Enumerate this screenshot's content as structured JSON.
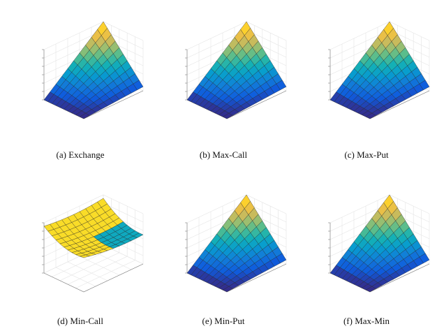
{
  "figure": {
    "panels": [
      {
        "id": "a",
        "caption": "(a)  Exchange",
        "surface": "rising"
      },
      {
        "id": "b",
        "caption": "(b)  Max-Call",
        "surface": "rising"
      },
      {
        "id": "c",
        "caption": "(c)  Max-Put",
        "surface": "rising"
      },
      {
        "id": "d",
        "caption": "(d)  Min-Call",
        "surface": "saddle"
      },
      {
        "id": "e",
        "caption": "(e)  Min-Put",
        "surface": "rising"
      },
      {
        "id": "f",
        "caption": "(f)  Max-Min",
        "surface": "rising"
      }
    ]
  }
}
